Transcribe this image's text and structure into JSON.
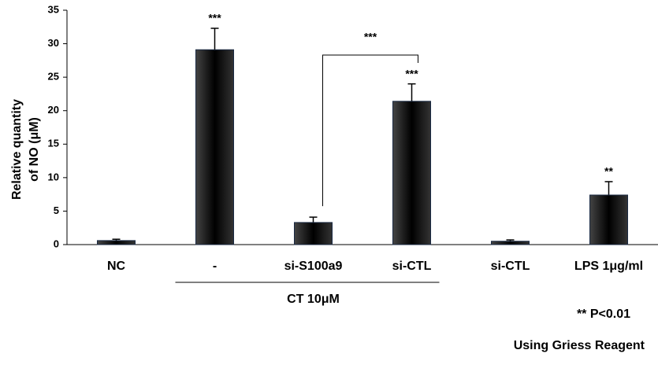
{
  "chart_data": {
    "type": "bar",
    "ylabel": [
      "Relative quantity",
      "of NO (μM)"
    ],
    "categories": [
      "NC",
      "-",
      "si-S100a9",
      "si-CTL",
      "si-CTL",
      "LPS 1μg/ml"
    ],
    "values": [
      0.6,
      29.1,
      3.3,
      21.4,
      0.5,
      7.4
    ],
    "errors": [
      0.2,
      3.2,
      0.8,
      2.6,
      0.2,
      2.0
    ],
    "significance": [
      null,
      "***",
      null,
      "***",
      null,
      "**"
    ],
    "bracket_label": "***",
    "group_label": "CT 10μM",
    "notes": [
      "** P<0.01",
      "Using Griess Reagent"
    ],
    "color": "#111111",
    "ylim": [
      0,
      35
    ],
    "yticks": [
      0,
      5,
      10,
      15,
      20,
      25,
      30,
      35
    ]
  }
}
